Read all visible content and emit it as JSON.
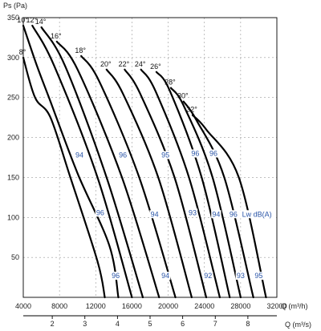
{
  "chart_data": {
    "type": "line",
    "ylabel": "Ps (Pa)",
    "xlabel": "Q (m³/h)",
    "x2label": "Q (m³/s)",
    "xlim": [
      4000,
      32000
    ],
    "ylim": [
      0,
      350
    ],
    "x_ticks": [
      4000,
      8000,
      12000,
      16000,
      20000,
      24000,
      28000,
      32000
    ],
    "y_ticks": [
      50,
      100,
      150,
      200,
      250,
      300,
      350
    ],
    "x2_ticks": [
      2,
      3,
      4,
      5,
      6,
      7,
      8
    ],
    "grid": true,
    "series": [
      {
        "name": "8°",
        "points": [
          [
            4000,
            300
          ],
          [
            5300,
            250
          ],
          [
            7000,
            225
          ],
          [
            9200,
            150
          ],
          [
            12200,
            45
          ],
          [
            13000,
            0
          ]
        ]
      },
      {
        "name": "10°",
        "points": [
          [
            4000,
            340
          ],
          [
            5500,
            290
          ],
          [
            7000,
            245
          ],
          [
            10000,
            155
          ],
          [
            13500,
            65
          ],
          [
            14500,
            0
          ]
        ]
      },
      {
        "name": "12°",
        "points": [
          [
            5000,
            340
          ],
          [
            7400,
            290
          ],
          [
            12200,
            150
          ],
          [
            16000,
            0
          ]
        ]
      },
      {
        "name": "14°",
        "points": [
          [
            6000,
            338
          ],
          [
            8600,
            290
          ],
          [
            13200,
            150
          ],
          [
            17200,
            0
          ]
        ]
      },
      {
        "name": "16°",
        "points": [
          [
            7700,
            320
          ],
          [
            10000,
            285
          ],
          [
            14900,
            150
          ],
          [
            19000,
            0
          ]
        ]
      },
      {
        "name": "18°",
        "points": [
          [
            10400,
            302
          ],
          [
            12400,
            270
          ],
          [
            16800,
            150
          ],
          [
            20800,
            0
          ]
        ]
      },
      {
        "name": "20°",
        "points": [
          [
            13200,
            285
          ],
          [
            15000,
            255
          ],
          [
            18900,
            150
          ],
          [
            22600,
            0
          ]
        ]
      },
      {
        "name": "22°",
        "points": [
          [
            15200,
            285
          ],
          [
            16900,
            255
          ],
          [
            20700,
            150
          ],
          [
            24200,
            0
          ]
        ]
      },
      {
        "name": "24°",
        "points": [
          [
            17000,
            285
          ],
          [
            18600,
            258
          ],
          [
            22300,
            150
          ],
          [
            25700,
            0
          ]
        ]
      },
      {
        "name": "26°",
        "points": [
          [
            18700,
            282
          ],
          [
            20200,
            258
          ],
          [
            23700,
            150
          ],
          [
            26800,
            0
          ]
        ]
      },
      {
        "name": "28°",
        "points": [
          [
            20300,
            262
          ],
          [
            21700,
            240
          ],
          [
            24900,
            150
          ],
          [
            28000,
            0
          ]
        ]
      },
      {
        "name": "30°",
        "points": [
          [
            21700,
            245
          ],
          [
            23100,
            222
          ],
          [
            26200,
            150
          ],
          [
            29400,
            0
          ]
        ]
      },
      {
        "name": "32°",
        "points": [
          [
            22700,
            228
          ],
          [
            24200,
            210
          ],
          [
            27800,
            150
          ],
          [
            30800,
            0
          ]
        ]
      }
    ],
    "angle_labels": [
      "8°",
      "10°",
      "12°",
      "14°",
      "16°",
      "18°",
      "20°",
      "22°",
      "24°",
      "26°",
      "28°",
      "30°",
      "32°"
    ],
    "annotations": [
      {
        "text": "94",
        "x": 10200,
        "y": 176
      },
      {
        "text": "96",
        "x": 15000,
        "y": 176
      },
      {
        "text": "95",
        "x": 19700,
        "y": 176
      },
      {
        "text": "96",
        "x": 23000,
        "y": 178
      },
      {
        "text": "96",
        "x": 25000,
        "y": 178
      },
      {
        "text": "96",
        "x": 12500,
        "y": 104
      },
      {
        "text": "94",
        "x": 18500,
        "y": 102
      },
      {
        "text": "93",
        "x": 22700,
        "y": 104
      },
      {
        "text": "94",
        "x": 25300,
        "y": 102
      },
      {
        "text": "96",
        "x": 27200,
        "y": 102
      },
      {
        "text": "Lw dB(A)",
        "x": 29800,
        "y": 102
      },
      {
        "text": "96",
        "x": 14200,
        "y": 25
      },
      {
        "text": "94",
        "x": 19700,
        "y": 25
      },
      {
        "text": "92",
        "x": 24400,
        "y": 25
      },
      {
        "text": "93",
        "x": 28000,
        "y": 25
      },
      {
        "text": "95",
        "x": 30000,
        "y": 25
      }
    ]
  }
}
